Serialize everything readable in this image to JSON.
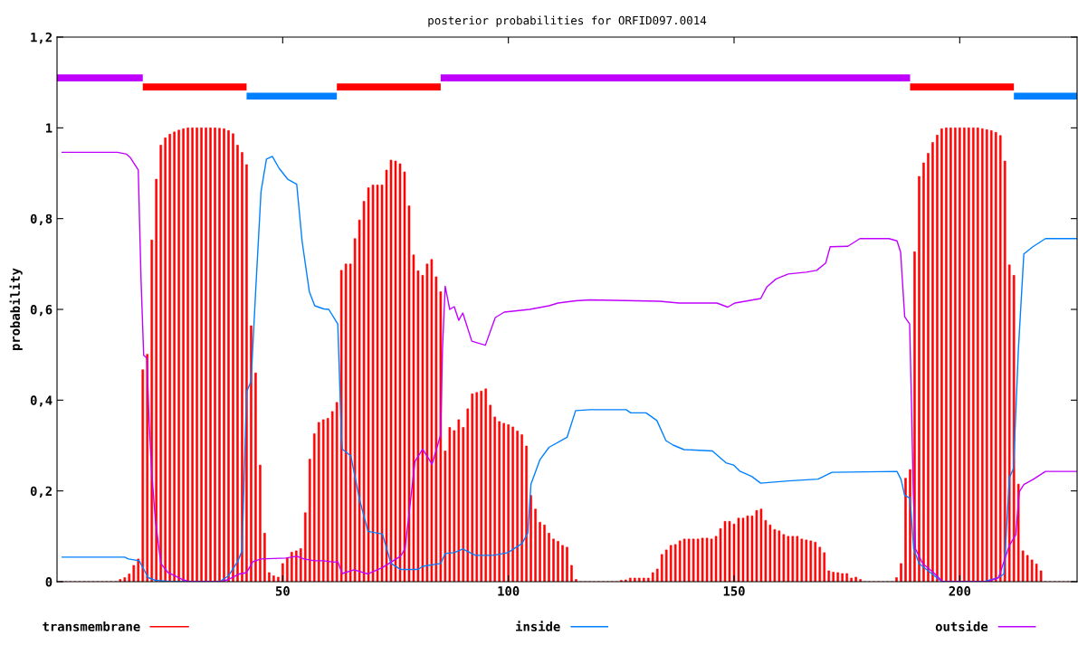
{
  "chart_data": {
    "type": "line",
    "title": "posterior probabilities for ORFID097.0014",
    "ylabel": "probability",
    "xlim": [
      0,
      226
    ],
    "xticks": [
      50,
      100,
      150,
      200
    ],
    "ylim": [
      0,
      1.2
    ],
    "yticks": [
      {
        "value": 0,
        "label": "0"
      },
      {
        "value": 0.2,
        "label": "0,2"
      },
      {
        "value": 0.4,
        "label": "0,4"
      },
      {
        "value": 0.6,
        "label": "0,6"
      },
      {
        "value": 0.8,
        "label": "0,8"
      },
      {
        "value": 1,
        "label": "1"
      },
      {
        "value": 1.2,
        "label": "1,2"
      }
    ],
    "grid": false,
    "legend": "bottom",
    "series": [
      {
        "name": "transmembrane",
        "type": "bar",
        "color": "#ff0000",
        "x": [
          1,
          2,
          3,
          4,
          5,
          6,
          7,
          8,
          9,
          10,
          11,
          12,
          13,
          14,
          15,
          16,
          17,
          18,
          19,
          20,
          21,
          22,
          23,
          24,
          25,
          26,
          27,
          28,
          29,
          30,
          31,
          32,
          33,
          34,
          35,
          36,
          37,
          38,
          39,
          40,
          41,
          42,
          43,
          44,
          45,
          46,
          47,
          48,
          49,
          50,
          51,
          52,
          53,
          54,
          55,
          56,
          57,
          58,
          59,
          60,
          61,
          62,
          63,
          64,
          65,
          66,
          67,
          68,
          69,
          70,
          71,
          72,
          73,
          74,
          75,
          76,
          77,
          78,
          79,
          80,
          81,
          82,
          83,
          84,
          85,
          86,
          87,
          88,
          89,
          90,
          91,
          92,
          93,
          94,
          95,
          96,
          97,
          98,
          99,
          100,
          101,
          102,
          103,
          104,
          105,
          106,
          107,
          108,
          109,
          110,
          111,
          112,
          113,
          114,
          115,
          116,
          117,
          118,
          119,
          120,
          121,
          122,
          123,
          124,
          125,
          126,
          127,
          128,
          129,
          130,
          131,
          132,
          133,
          134,
          135,
          136,
          137,
          138,
          139,
          140,
          141,
          142,
          143,
          144,
          145,
          146,
          147,
          148,
          149,
          150,
          151,
          152,
          153,
          154,
          155,
          156,
          157,
          158,
          159,
          160,
          161,
          162,
          163,
          164,
          165,
          166,
          167,
          168,
          169,
          170,
          171,
          172,
          173,
          174,
          175,
          176,
          177,
          178,
          179,
          180,
          181,
          182,
          183,
          184,
          185,
          186,
          187,
          188,
          189,
          190,
          191,
          192,
          193,
          194,
          195,
          196,
          197,
          198,
          199,
          200,
          201,
          202,
          203,
          204,
          205,
          206,
          207,
          208,
          209,
          210,
          211,
          212,
          213,
          214,
          215,
          216,
          217,
          218,
          219,
          220,
          221,
          222,
          223,
          224,
          225,
          226
        ],
        "values": [
          0,
          0,
          0,
          0,
          0,
          0,
          0,
          0,
          0,
          0,
          0,
          0,
          0,
          0.005,
          0.009,
          0.017,
          0.036,
          0.05,
          0.467,
          0.501,
          0.753,
          0.887,
          0.962,
          0.978,
          0.986,
          0.991,
          0.995,
          0.998,
          1,
          1,
          1,
          1,
          1,
          1,
          1,
          0.999,
          0.998,
          0.994,
          0.987,
          0.962,
          0.946,
          0.919,
          0.564,
          0.46,
          0.257,
          0.107,
          0.02,
          0.013,
          0.01,
          0.04,
          0.052,
          0.065,
          0.068,
          0.073,
          0.152,
          0.27,
          0.326,
          0.351,
          0.357,
          0.36,
          0.375,
          0.395,
          0.686,
          0.7,
          0.7,
          0.756,
          0.797,
          0.838,
          0.868,
          0.874,
          0.874,
          0.874,
          0.907,
          0.929,
          0.927,
          0.921,
          0.903,
          0.828,
          0.72,
          0.685,
          0.675,
          0.7,
          0.71,
          0.672,
          0.639,
          0.288,
          0.34,
          0.333,
          0.357,
          0.34,
          0.381,
          0.414,
          0.417,
          0.42,
          0.425,
          0.389,
          0.363,
          0.353,
          0.349,
          0.346,
          0.341,
          0.332,
          0.324,
          0.299,
          0.19,
          0.16,
          0.131,
          0.125,
          0.107,
          0.094,
          0.089,
          0.08,
          0.076,
          0.036,
          0.005,
          0,
          0,
          0,
          0,
          0,
          0,
          0,
          0,
          0,
          0.003,
          0.004,
          0.008,
          0.008,
          0.008,
          0.008,
          0.008,
          0.02,
          0.028,
          0.06,
          0.07,
          0.08,
          0.082,
          0.09,
          0.094,
          0.094,
          0.094,
          0.094,
          0.096,
          0.096,
          0.094,
          0.1,
          0.117,
          0.133,
          0.133,
          0.127,
          0.14,
          0.14,
          0.145,
          0.145,
          0.157,
          0.16,
          0.135,
          0.125,
          0.115,
          0.112,
          0.104,
          0.1,
          0.1,
          0.1,
          0.094,
          0.092,
          0.09,
          0.087,
          0.076,
          0.064,
          0.024,
          0.021,
          0.02,
          0.018,
          0.018,
          0.008,
          0.01,
          0.005,
          0,
          0,
          0,
          0,
          0,
          0,
          0,
          0.009,
          0.04,
          0.228,
          0.247,
          0.727,
          0.893,
          0.923,
          0.944,
          0.968,
          0.984,
          0.998,
          1,
          1,
          1,
          1,
          1,
          1,
          1,
          1,
          0.998,
          0.996,
          0.994,
          0.99,
          0.983,
          0.927,
          0.698,
          0.675,
          0.215,
          0.068,
          0.058,
          0.048,
          0.039,
          0.024,
          0,
          0,
          0,
          0,
          0,
          0,
          0,
          0
        ]
      },
      {
        "name": "inside",
        "color": "#0080ff",
        "x": [
          1,
          15,
          15.8,
          18.2,
          19.4,
          20.2,
          21.8,
          25.3,
          36,
          38,
          40,
          41,
          42,
          43,
          44,
          45.2,
          46.4,
          47.7,
          49.2,
          51.1,
          53.1,
          54.3,
          55.9,
          57.1,
          59.1,
          60.2,
          62.2,
          63,
          63.2,
          65.1,
          67,
          68.9,
          72.1,
          74,
          76.1,
          80,
          81,
          85,
          86,
          88,
          89.9,
          92.7,
          96.7,
          99.9,
          103,
          104.3,
          105,
          107,
          109,
          113,
          114.9,
          118.1,
          126.1,
          127.1,
          130.5,
          132.9,
          134.9,
          136.5,
          138.9,
          145.2,
          148.2,
          149.9,
          151.2,
          153.9,
          155.9,
          162,
          168.6,
          171.7,
          186.1,
          187,
          187.8,
          189,
          189.8,
          191,
          193,
          195.8,
          196.2,
          205.4,
          208.6,
          209.8,
          211,
          211.9,
          213,
          214.2,
          216.2,
          219,
          226
        ],
        "values": [
          0.054,
          0.054,
          0.05,
          0.046,
          0.024,
          0.009,
          0.003,
          0,
          0,
          0.013,
          0.044,
          0.068,
          0.418,
          0.442,
          0.639,
          0.86,
          0.931,
          0.937,
          0.911,
          0.887,
          0.876,
          0.75,
          0.639,
          0.608,
          0.601,
          0.6,
          0.568,
          0.324,
          0.292,
          0.277,
          0.182,
          0.111,
          0.105,
          0.04,
          0.027,
          0.027,
          0.034,
          0.04,
          0.062,
          0.064,
          0.072,
          0.058,
          0.058,
          0.064,
          0.084,
          0.107,
          0.215,
          0.269,
          0.296,
          0.318,
          0.377,
          0.379,
          0.379,
          0.372,
          0.372,
          0.355,
          0.311,
          0.301,
          0.291,
          0.288,
          0.262,
          0.257,
          0.244,
          0.232,
          0.217,
          0.222,
          0.226,
          0.241,
          0.243,
          0.225,
          0.19,
          0.184,
          0.072,
          0.04,
          0.024,
          0.002,
          0,
          0,
          0.009,
          0.017,
          0.229,
          0.249,
          0.513,
          0.722,
          0.738,
          0.756,
          0.756
        ]
      },
      {
        "name": "outside",
        "color": "#c000ff",
        "x": [
          1,
          13.4,
          15.4,
          16.2,
          18,
          18.6,
          19.2,
          19.9,
          20.4,
          21,
          21.8,
          23,
          24.6,
          27.7,
          29.3,
          36.5,
          38,
          40.4,
          42,
          43.4,
          45.2,
          50.7,
          53.1,
          54.7,
          57.1,
          59.1,
          61.3,
          62.2,
          63.2,
          65.8,
          68.9,
          72.1,
          76.1,
          77.1,
          79.3,
          81,
          83.1,
          85,
          85.4,
          86,
          87,
          88,
          89,
          89.9,
          91.9,
          94.9,
          97.1,
          99.1,
          104.7,
          109,
          111,
          114.9,
          118.1,
          133.5,
          137.8,
          146.2,
          148.6,
          150.2,
          155.9,
          157.3,
          159.3,
          162,
          166,
          168.3,
          170.3,
          171.3,
          175.2,
          177.9,
          184.3,
          186.1,
          186.9,
          187.8,
          188.9,
          189.3,
          189.7,
          190.2,
          191.8,
          194.2,
          196.2,
          206.2,
          208.6,
          211,
          212.4,
          213.2,
          214.2,
          216.2,
          219,
          226
        ],
        "values": [
          0.946,
          0.946,
          0.942,
          0.935,
          0.907,
          0.67,
          0.499,
          0.493,
          0.355,
          0.237,
          0.135,
          0.04,
          0.02,
          0.005,
          0,
          0,
          0.005,
          0.017,
          0.02,
          0.044,
          0.05,
          0.052,
          0.056,
          0.05,
          0.046,
          0.046,
          0.043,
          0.044,
          0.018,
          0.026,
          0.017,
          0.031,
          0.056,
          0.072,
          0.265,
          0.292,
          0.259,
          0.324,
          0.513,
          0.651,
          0.6,
          0.606,
          0.576,
          0.592,
          0.53,
          0.521,
          0.582,
          0.594,
          0.6,
          0.608,
          0.614,
          0.619,
          0.621,
          0.618,
          0.614,
          0.614,
          0.605,
          0.614,
          0.624,
          0.65,
          0.667,
          0.678,
          0.682,
          0.686,
          0.702,
          0.738,
          0.739,
          0.756,
          0.756,
          0.751,
          0.726,
          0.584,
          0.568,
          0.395,
          0.198,
          0.072,
          0.04,
          0.02,
          0,
          0,
          0.009,
          0.08,
          0.103,
          0.198,
          0.214,
          0.225,
          0.243,
          0.243
        ]
      },
      {
        "color": "#c000ff",
        "x": [
          0,
          19,
          52,
          85,
          189
        ],
        "values": [
          1.11,
          1.11,
          null,
          1.11,
          1.11
        ]
      },
      {
        "color": "#ff0000",
        "x": [
          19,
          42,
          52,
          62,
          85,
          137,
          189,
          212
        ],
        "values": [
          1.09,
          1.09,
          null,
          1.09,
          1.09,
          null,
          1.09,
          1.09
        ]
      },
      {
        "color": "#0080ff",
        "x": [
          42,
          62,
          137,
          212,
          226
        ],
        "values": [
          1.07,
          1.07,
          null,
          1.07,
          1.07
        ]
      }
    ]
  }
}
